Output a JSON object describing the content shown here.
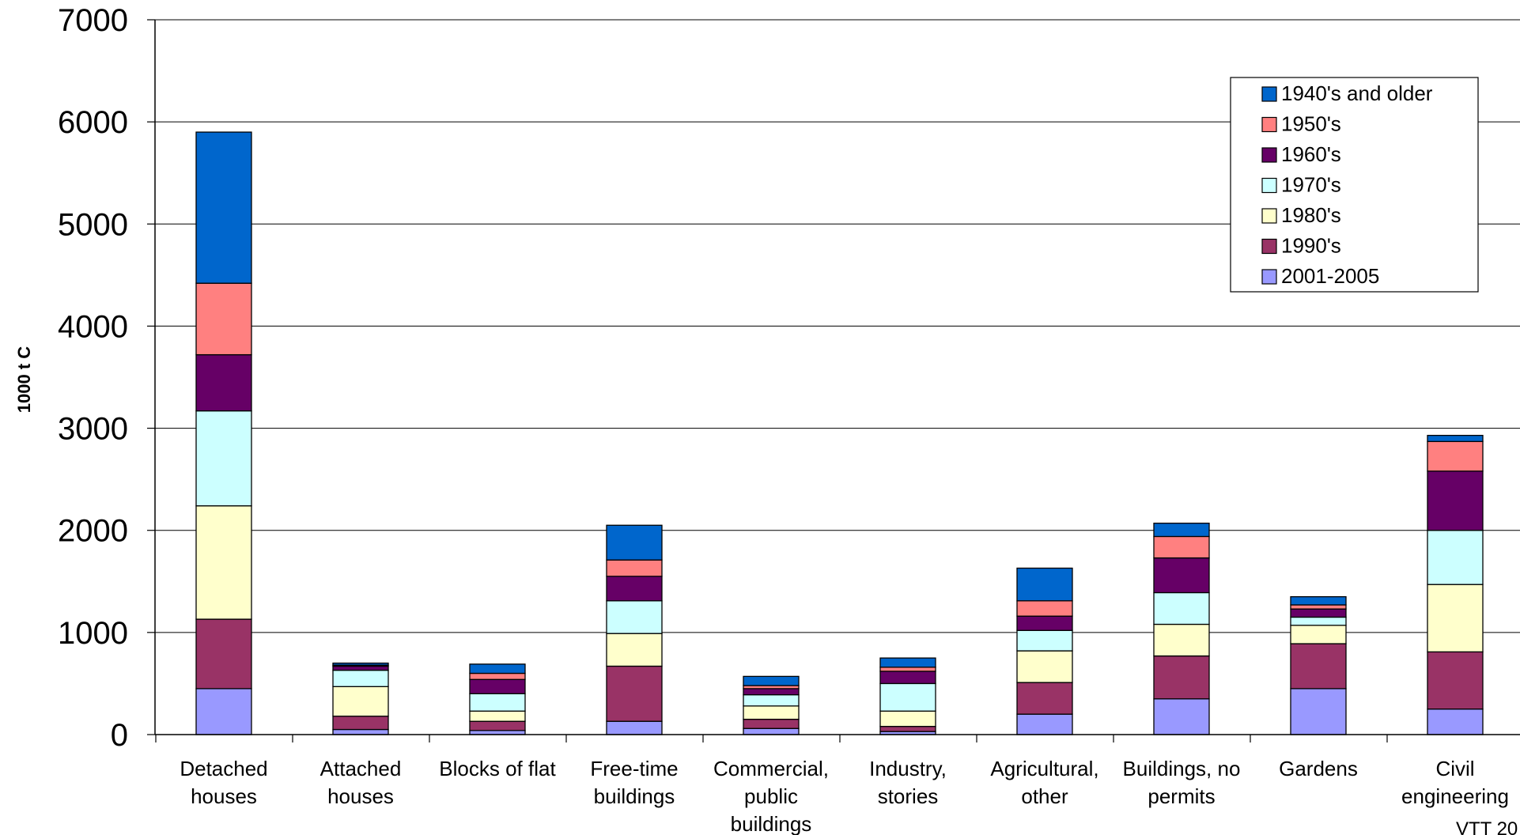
{
  "chart_data": {
    "type": "bar",
    "stacked": true,
    "ylabel": "1000 t C",
    "ylim": [
      0,
      7000
    ],
    "yticks": [
      0,
      1000,
      2000,
      3000,
      4000,
      5000,
      6000,
      7000
    ],
    "grid": true,
    "legend_position": "top-right",
    "source_note": "VTT 20",
    "categories": [
      [
        "Detached",
        "houses"
      ],
      [
        "Attached",
        "houses"
      ],
      [
        "Blocks of flat"
      ],
      [
        "Free-time",
        "buildings"
      ],
      [
        "Commercial,",
        "public",
        "buildings"
      ],
      [
        "Industry,",
        "stories"
      ],
      [
        "Agricultural,",
        "other"
      ],
      [
        "Buildings, no",
        "permits"
      ],
      [
        "Gardens"
      ],
      [
        "Civil",
        "engineering"
      ]
    ],
    "series": [
      {
        "name": "2001-2005",
        "color": "#9999ff",
        "values": [
          450,
          50,
          40,
          130,
          60,
          30,
          200,
          350,
          450,
          250
        ]
      },
      {
        "name": "1990's",
        "color": "#993366",
        "values": [
          680,
          130,
          90,
          540,
          90,
          50,
          310,
          420,
          440,
          560
        ]
      },
      {
        "name": "1980's",
        "color": "#ffffcc",
        "values": [
          1110,
          290,
          100,
          320,
          130,
          150,
          310,
          310,
          180,
          660
        ]
      },
      {
        "name": "1970's",
        "color": "#ccffff",
        "values": [
          930,
          160,
          170,
          320,
          110,
          270,
          200,
          310,
          80,
          530
        ]
      },
      {
        "name": "1960's",
        "color": "#660066",
        "values": [
          550,
          40,
          140,
          240,
          60,
          120,
          140,
          340,
          80,
          580
        ]
      },
      {
        "name": "1950's",
        "color": "#ff8080",
        "values": [
          700,
          10,
          60,
          160,
          30,
          40,
          150,
          210,
          40,
          290
        ]
      },
      {
        "name": "1940's and older",
        "color": "#0066cc",
        "values": [
          1480,
          20,
          90,
          340,
          90,
          90,
          320,
          130,
          80,
          60
        ]
      }
    ]
  }
}
